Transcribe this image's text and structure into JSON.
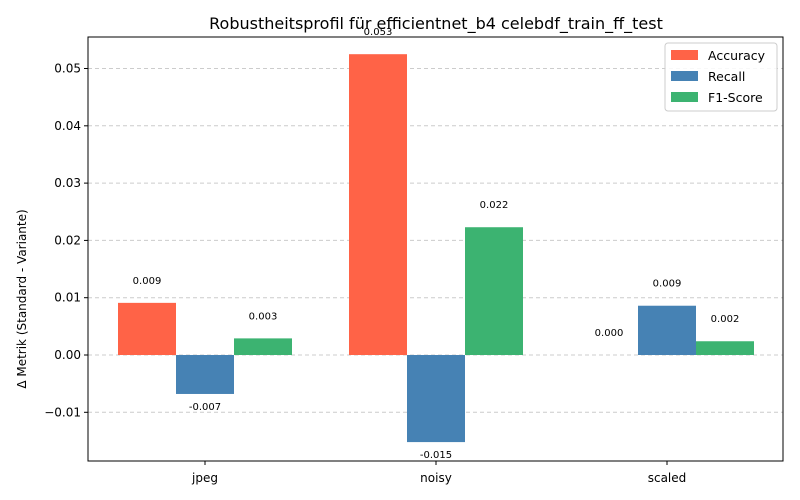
{
  "chart_data": {
    "type": "bar",
    "title": "Robustheitsprofil für efficientnet_b4 celebdf_train_ff_test",
    "xlabel": "",
    "ylabel": "Δ Metrik (Standard - Variante)",
    "categories": [
      "jpeg",
      "noisy",
      "scaled"
    ],
    "series": [
      {
        "name": "Accuracy",
        "color": "#ff6347",
        "values": [
          0.0091,
          0.0525,
          0.0
        ],
        "labels": [
          "0.009",
          "0.053",
          "0.000"
        ]
      },
      {
        "name": "Recall",
        "color": "#4682b4",
        "values": [
          -0.0068,
          -0.0152,
          0.0086
        ],
        "labels": [
          "-0.007",
          "-0.015",
          "0.009"
        ]
      },
      {
        "name": "F1-Score",
        "color": "#3cb371",
        "values": [
          0.0029,
          0.0223,
          0.0024
        ],
        "labels": [
          "0.003",
          "0.022",
          "0.002"
        ]
      }
    ],
    "ylim": [
      -0.0185,
      0.0555
    ],
    "yticks": [
      -0.01,
      0.0,
      0.01,
      0.02,
      0.03,
      0.04,
      0.05
    ],
    "ytick_labels": [
      "−0.01",
      "0.00",
      "0.01",
      "0.02",
      "0.03",
      "0.04",
      "0.05"
    ],
    "grid": "y-dashed",
    "legend_position": "top-right"
  }
}
